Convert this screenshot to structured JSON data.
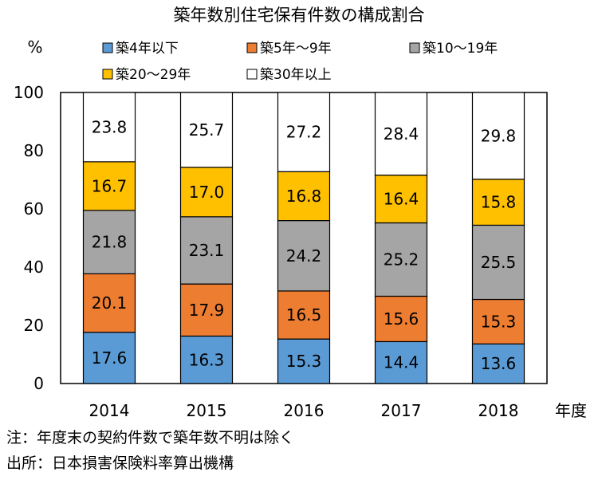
{
  "chart_data": {
    "type": "bar",
    "stacked": true,
    "title": "築年数別住宅保有件数の構成割合",
    "ylabel": "%",
    "xlabel": "年度",
    "ylim": [
      0,
      100
    ],
    "yticks": [
      0,
      20,
      40,
      60,
      80,
      100
    ],
    "categories": [
      "2014",
      "2015",
      "2016",
      "2017",
      "2018"
    ],
    "legend_position": "top",
    "series": [
      {
        "name": "築4年以下",
        "color": "#5B9BD5",
        "values": [
          17.6,
          16.3,
          15.3,
          14.4,
          13.6
        ]
      },
      {
        "name": "築5年～9年",
        "color": "#ED7D31",
        "values": [
          20.1,
          17.9,
          16.5,
          15.6,
          15.3
        ]
      },
      {
        "name": "築10～19年",
        "color": "#A5A5A5",
        "values": [
          21.8,
          23.1,
          24.2,
          25.2,
          25.5
        ]
      },
      {
        "name": "築20～29年",
        "color": "#FFC000",
        "values": [
          16.7,
          17.0,
          16.8,
          16.4,
          15.8
        ]
      },
      {
        "name": "築30年以上",
        "color": "#FFFFFF",
        "values": [
          23.8,
          25.7,
          27.2,
          28.4,
          29.8
        ]
      }
    ],
    "notes": [
      "注：年度末の契約件数で築年数不明は除く",
      "出所：日本損害保険料率算出機構"
    ]
  }
}
